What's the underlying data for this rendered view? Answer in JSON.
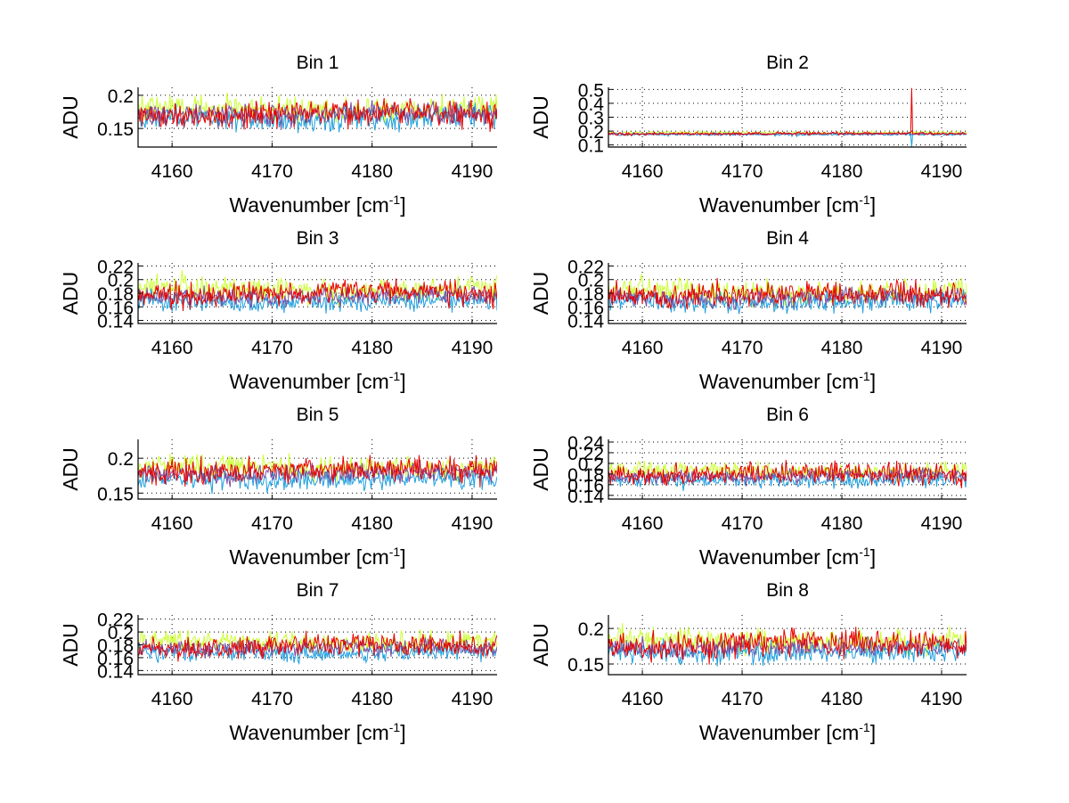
{
  "chart_data": [
    {
      "type": "line",
      "title": "Bin 1",
      "xlabel": "Wavenumber [cm-1]",
      "xlabel_base": "Wavenumber [cm",
      "xlabel_sup": "-1",
      "xlabel_end": "]",
      "ylabel": "ADU",
      "xlim": [
        4156.6,
        4192.5
      ],
      "ylim": [
        0.122,
        0.212
      ],
      "xticks": [
        4160,
        4170,
        4180,
        4190
      ],
      "xtick_labels": [
        "4160",
        "4170",
        "4180",
        "4190"
      ],
      "yticks": [
        0.15,
        0.2
      ],
      "ytick_labels": [
        "0.15",
        "0.2"
      ],
      "grid": true,
      "series": [
        {
          "name": "series-yellow",
          "color": "#ccff33",
          "mean": 0.18,
          "noise": 0.012
        },
        {
          "name": "series-blue",
          "color": "#1e9fdf",
          "mean": 0.166,
          "noise": 0.011
        },
        {
          "name": "series-purple",
          "color": "#7b4fa0",
          "mean": 0.172,
          "noise": 0.01
        },
        {
          "name": "series-red",
          "color": "#e60000",
          "mean": 0.172,
          "noise": 0.013
        }
      ]
    },
    {
      "type": "line",
      "title": "Bin 2",
      "xlabel": "Wavenumber [cm-1]",
      "xlabel_base": "Wavenumber [cm",
      "xlabel_sup": "-1",
      "xlabel_end": "]",
      "ylabel": "ADU",
      "xlim": [
        4156.6,
        4192.5
      ],
      "ylim": [
        0.085,
        0.515
      ],
      "xticks": [
        4160,
        4170,
        4180,
        4190
      ],
      "xtick_labels": [
        "4160",
        "4170",
        "4180",
        "4190"
      ],
      "yticks": [
        0.1,
        0.2,
        0.3,
        0.4,
        0.5
      ],
      "ytick_labels": [
        "0.1",
        "0.2",
        "0.3",
        "0.4",
        "0.5"
      ],
      "grid": true,
      "spike": {
        "x": 4187.0,
        "red_peak": 0.51,
        "blue_dip": 0.085
      },
      "series": [
        {
          "name": "series-yellow",
          "color": "#ccff33",
          "mean": 0.188,
          "noise": 0.006
        },
        {
          "name": "series-blue",
          "color": "#1e9fdf",
          "mean": 0.176,
          "noise": 0.006
        },
        {
          "name": "series-purple",
          "color": "#7b4fa0",
          "mean": 0.18,
          "noise": 0.005
        },
        {
          "name": "series-red",
          "color": "#e60000",
          "mean": 0.182,
          "noise": 0.007
        }
      ]
    },
    {
      "type": "line",
      "title": "Bin 3",
      "xlabel": "Wavenumber [cm-1]",
      "xlabel_base": "Wavenumber [cm",
      "xlabel_sup": "-1",
      "xlabel_end": "]",
      "ylabel": "ADU",
      "xlim": [
        4156.6,
        4192.5
      ],
      "ylim": [
        0.1355,
        0.2245
      ],
      "xticks": [
        4160,
        4170,
        4180,
        4190
      ],
      "xtick_labels": [
        "4160",
        "4170",
        "4180",
        "4190"
      ],
      "yticks": [
        0.14,
        0.16,
        0.18,
        0.2,
        0.22
      ],
      "ytick_labels": [
        "0.14",
        "0.16",
        "0.18",
        "0.2",
        "0.22"
      ],
      "grid": true,
      "series": [
        {
          "name": "series-yellow",
          "color": "#ccff33",
          "mean": 0.186,
          "noise": 0.011
        },
        {
          "name": "series-blue",
          "color": "#1e9fdf",
          "mean": 0.168,
          "noise": 0.009
        },
        {
          "name": "series-purple",
          "color": "#7b4fa0",
          "mean": 0.176,
          "noise": 0.008
        },
        {
          "name": "series-red",
          "color": "#e60000",
          "mean": 0.18,
          "noise": 0.011
        }
      ]
    },
    {
      "type": "line",
      "title": "Bin 4",
      "xlabel": "Wavenumber [cm-1]",
      "xlabel_base": "Wavenumber [cm",
      "xlabel_sup": "-1",
      "xlabel_end": "]",
      "ylabel": "ADU",
      "xlim": [
        4156.6,
        4192.5
      ],
      "ylim": [
        0.1355,
        0.2245
      ],
      "xticks": [
        4160,
        4170,
        4180,
        4190
      ],
      "xtick_labels": [
        "4160",
        "4170",
        "4180",
        "4190"
      ],
      "yticks": [
        0.14,
        0.16,
        0.18,
        0.2,
        0.22
      ],
      "ytick_labels": [
        "0.14",
        "0.16",
        "0.18",
        "0.2",
        "0.22"
      ],
      "grid": true,
      "series": [
        {
          "name": "series-yellow",
          "color": "#ccff33",
          "mean": 0.182,
          "noise": 0.011
        },
        {
          "name": "series-blue",
          "color": "#1e9fdf",
          "mean": 0.168,
          "noise": 0.009
        },
        {
          "name": "series-purple",
          "color": "#7b4fa0",
          "mean": 0.174,
          "noise": 0.008
        },
        {
          "name": "series-red",
          "color": "#e60000",
          "mean": 0.178,
          "noise": 0.011
        }
      ]
    },
    {
      "type": "line",
      "title": "Bin 5",
      "xlabel": "Wavenumber [cm-1]",
      "xlabel_base": "Wavenumber [cm",
      "xlabel_sup": "-1",
      "xlabel_end": "]",
      "ylabel": "ADU",
      "xlim": [
        4156.6,
        4192.5
      ],
      "ylim": [
        0.1414,
        0.2271
      ],
      "xticks": [
        4160,
        4170,
        4180,
        4190
      ],
      "xtick_labels": [
        "4160",
        "4170",
        "4180",
        "4190"
      ],
      "yticks": [
        0.15,
        0.2
      ],
      "ytick_labels": [
        "0.15",
        "0.2"
      ],
      "grid": true,
      "series": [
        {
          "name": "series-yellow",
          "color": "#ccff33",
          "mean": 0.187,
          "noise": 0.011
        },
        {
          "name": "series-blue",
          "color": "#1e9fdf",
          "mean": 0.17,
          "noise": 0.009
        },
        {
          "name": "series-purple",
          "color": "#7b4fa0",
          "mean": 0.178,
          "noise": 0.008
        },
        {
          "name": "series-red",
          "color": "#e60000",
          "mean": 0.183,
          "noise": 0.011
        }
      ]
    },
    {
      "type": "line",
      "title": "Bin 6",
      "xlabel": "Wavenumber [cm-1]",
      "xlabel_base": "Wavenumber [cm",
      "xlabel_sup": "-1",
      "xlabel_end": "]",
      "ylabel": "ADU",
      "xlim": [
        4156.6,
        4192.5
      ],
      "ylim": [
        0.133,
        0.245
      ],
      "xticks": [
        4160,
        4170,
        4180,
        4190
      ],
      "xtick_labels": [
        "4160",
        "4170",
        "4180",
        "4190"
      ],
      "yticks": [
        0.14,
        0.16,
        0.18,
        0.2,
        0.22,
        0.24
      ],
      "ytick_labels": [
        "0.14",
        "0.16",
        "0.18",
        "0.2",
        "0.22",
        "0.24"
      ],
      "grid": true,
      "series": [
        {
          "name": "series-yellow",
          "color": "#ccff33",
          "mean": 0.186,
          "noise": 0.01
        },
        {
          "name": "series-blue",
          "color": "#1e9fdf",
          "mean": 0.168,
          "noise": 0.009
        },
        {
          "name": "series-purple",
          "color": "#7b4fa0",
          "mean": 0.176,
          "noise": 0.008
        },
        {
          "name": "series-red",
          "color": "#e60000",
          "mean": 0.18,
          "noise": 0.012
        }
      ]
    },
    {
      "type": "line",
      "title": "Bin 7",
      "xlabel": "Wavenumber [cm-1]",
      "xlabel_base": "Wavenumber [cm",
      "xlabel_sup": "-1",
      "xlabel_end": "]",
      "ylabel": "ADU",
      "xlim": [
        4156.6,
        4192.5
      ],
      "ylim": [
        0.1335,
        0.2265
      ],
      "xticks": [
        4160,
        4170,
        4180,
        4190
      ],
      "xtick_labels": [
        "4160",
        "4170",
        "4180",
        "4190"
      ],
      "yticks": [
        0.14,
        0.16,
        0.18,
        0.2,
        0.22
      ],
      "ytick_labels": [
        "0.14",
        "0.16",
        "0.18",
        "0.2",
        "0.22"
      ],
      "grid": true,
      "series": [
        {
          "name": "series-yellow",
          "color": "#ccff33",
          "mean": 0.184,
          "noise": 0.01
        },
        {
          "name": "series-blue",
          "color": "#1e9fdf",
          "mean": 0.168,
          "noise": 0.008
        },
        {
          "name": "series-purple",
          "color": "#7b4fa0",
          "mean": 0.175,
          "noise": 0.008
        },
        {
          "name": "series-red",
          "color": "#e60000",
          "mean": 0.179,
          "noise": 0.011
        }
      ]
    },
    {
      "type": "line",
      "title": "Bin 8",
      "xlabel": "Wavenumber [cm-1]",
      "xlabel_base": "Wavenumber [cm",
      "xlabel_sup": "-1",
      "xlabel_end": "]",
      "ylabel": "ADU",
      "xlim": [
        4156.6,
        4192.5
      ],
      "ylim": [
        0.135,
        0.219
      ],
      "xticks": [
        4160,
        4170,
        4180,
        4190
      ],
      "xtick_labels": [
        "4160",
        "4170",
        "4180",
        "4190"
      ],
      "yticks": [
        0.15,
        0.2
      ],
      "ytick_labels": [
        "0.15",
        "0.2"
      ],
      "grid": true,
      "series": [
        {
          "name": "series-yellow",
          "color": "#ccff33",
          "mean": 0.182,
          "noise": 0.011
        },
        {
          "name": "series-blue",
          "color": "#1e9fdf",
          "mean": 0.166,
          "noise": 0.009
        },
        {
          "name": "series-purple",
          "color": "#7b4fa0",
          "mean": 0.174,
          "noise": 0.008
        },
        {
          "name": "series-red",
          "color": "#e60000",
          "mean": 0.178,
          "noise": 0.012
        }
      ]
    }
  ]
}
